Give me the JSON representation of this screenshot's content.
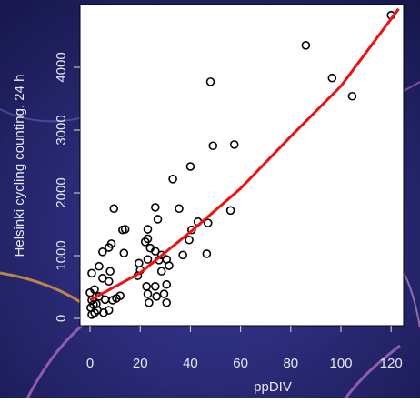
{
  "chart_data": {
    "type": "scatter",
    "xlabel": "ppDIV",
    "ylabel": "Helsinki cycling counting, 24 h",
    "x": [
      120,
      86,
      96.5,
      104.5,
      48,
      49,
      57.5,
      40,
      33,
      56,
      35.5,
      26,
      9.5,
      14,
      13,
      27,
      23,
      43,
      47,
      40.5,
      39.5,
      23,
      22,
      46.5,
      37,
      7.5,
      8.5,
      5,
      13.5,
      24,
      26,
      28.5,
      23,
      19.5,
      20,
      27.5,
      30.5,
      31.5,
      28.5,
      19,
      0.7,
      3.6,
      8,
      5,
      7.5,
      22.5,
      26,
      30.5,
      29.5,
      23,
      23.5,
      30.5,
      26.5,
      12,
      10.5,
      9,
      6,
      3.6,
      1.8,
      0,
      0.7,
      2.5,
      0.3,
      1.8,
      0.7,
      2.9,
      5.4,
      7.5,
      1.4
    ],
    "values": [
      4830,
      4350,
      3830,
      3540,
      3770,
      2750,
      2770,
      2420,
      2220,
      1720,
      1750,
      1770,
      1750,
      1420,
      1410,
      1580,
      1420,
      1540,
      1520,
      1410,
      1250,
      1270,
      1220,
      1030,
      1010,
      1130,
      1190,
      1060,
      1040,
      1120,
      1070,
      1010,
      940,
      880,
      770,
      930,
      940,
      840,
      750,
      680,
      720,
      830,
      750,
      640,
      590,
      510,
      510,
      540,
      390,
      390,
      250,
      250,
      350,
      360,
      320,
      290,
      300,
      350,
      460,
      410,
      290,
      230,
      170,
      90,
      60,
      130,
      90,
      130,
      220
    ],
    "fit": {
      "x": [
        0,
        20,
        40,
        60,
        80,
        100,
        123
      ],
      "values": [
        290,
        725,
        1377,
        2070,
        2900,
        3700,
        4930
      ],
      "color": "#ee1111"
    },
    "xlim": [
      -4,
      125
    ],
    "ylim": [
      -116,
      5000
    ],
    "xticks": [
      0,
      20,
      40,
      60,
      80,
      100,
      120
    ],
    "yticks": [
      0,
      1000,
      2000,
      3000,
      4000
    ]
  }
}
